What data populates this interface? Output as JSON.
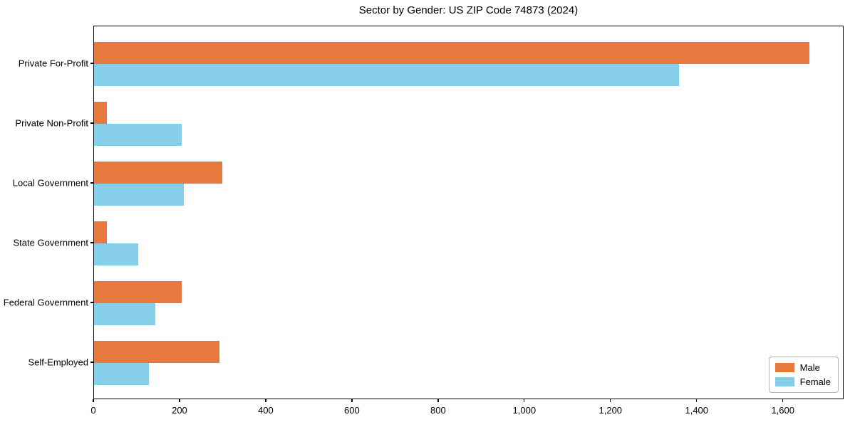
{
  "title": "Sector by Gender: US ZIP Code 74873 (2024)",
  "colors": {
    "male": "#e8793e",
    "female": "#87ceeb",
    "spine": "#000000",
    "legend_border": "#b3b3b3",
    "background": "#ffffff"
  },
  "legend": {
    "position": "lower right",
    "items": [
      {
        "label": "Male",
        "color": "#e8793e"
      },
      {
        "label": "Female",
        "color": "#87ceeb"
      }
    ]
  },
  "chart_data": {
    "type": "bar",
    "orientation": "horizontal",
    "title": "Sector by Gender: US ZIP Code 74873 (2024)",
    "categories": [
      "Private For-Profit",
      "Private Non-Profit",
      "Local Government",
      "State Government",
      "Federal Government",
      "Self-Employed"
    ],
    "series": [
      {
        "name": "Male",
        "color": "#e8793e",
        "values": [
          1660,
          30,
          297,
          29,
          204,
          291
        ]
      },
      {
        "name": "Female",
        "color": "#87ceeb",
        "values": [
          1357,
          203,
          208,
          103,
          143,
          127
        ]
      }
    ],
    "xlabel": "",
    "ylabel": "",
    "xlim": [
      0,
      1741
    ],
    "xticks": [
      0,
      200,
      400,
      600,
      800,
      1000,
      1200,
      1400,
      1600
    ],
    "xtick_labels": [
      "0",
      "200",
      "400",
      "600",
      "800",
      "1,000",
      "1,200",
      "1,400",
      "1,600"
    ],
    "grid": false,
    "legend_position": "lower right"
  }
}
